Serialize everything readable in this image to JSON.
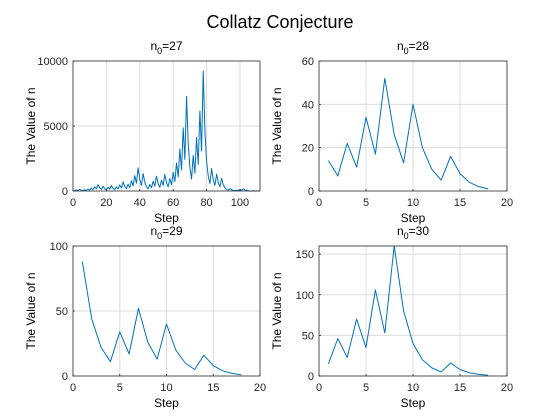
{
  "figure": {
    "title": "Collatz Conjecture",
    "background": "#ffffff",
    "line_color": "#0072bd",
    "grid_color": "#dcdcdc",
    "axis_color": "#262626"
  },
  "chart_data": [
    {
      "type": "line",
      "title_base": "n",
      "title_sub": "0",
      "title_tail": "=27",
      "xlabel": "Step",
      "ylabel": "The Value of n",
      "xlim": [
        0,
        112
      ],
      "ylim": [
        0,
        10000
      ],
      "xticks": [
        0,
        20,
        40,
        60,
        80,
        100
      ],
      "yticks": [
        0,
        5000,
        10000
      ],
      "grid": true,
      "x_start": 1,
      "series": [
        {
          "values": [
            27,
            82,
            41,
            124,
            62,
            31,
            94,
            47,
            142,
            71,
            214,
            107,
            322,
            161,
            484,
            242,
            121,
            364,
            182,
            91,
            274,
            137,
            412,
            206,
            103,
            310,
            155,
            466,
            233,
            700,
            350,
            175,
            526,
            263,
            790,
            395,
            1186,
            593,
            1780,
            890,
            445,
            1336,
            668,
            334,
            167,
            502,
            251,
            754,
            377,
            1132,
            566,
            283,
            850,
            425,
            1276,
            638,
            319,
            958,
            479,
            1438,
            719,
            2158,
            1079,
            3238,
            1619,
            4858,
            2429,
            7288,
            3644,
            1822,
            911,
            2734,
            1367,
            4102,
            2051,
            6154,
            3077,
            9232,
            4616,
            2308,
            1154,
            577,
            1732,
            866,
            433,
            1300,
            650,
            325,
            976,
            488,
            244,
            122,
            61,
            184,
            92,
            46,
            23,
            70,
            35,
            106,
            53,
            160,
            80,
            40,
            20,
            10,
            5,
            16,
            8,
            4,
            2,
            1
          ]
        }
      ]
    },
    {
      "type": "line",
      "title_base": "n",
      "title_sub": "0",
      "title_tail": "=28",
      "xlabel": "Step",
      "ylabel": "The Value of n",
      "xlim": [
        0,
        20
      ],
      "ylim": [
        0,
        60
      ],
      "xticks": [
        0,
        5,
        10,
        15,
        20
      ],
      "yticks": [
        0,
        20,
        40,
        60
      ],
      "grid": true,
      "x_start": 1,
      "series": [
        {
          "values": [
            14,
            7,
            22,
            11,
            34,
            17,
            52,
            26,
            13,
            40,
            20,
            10,
            5,
            16,
            8,
            4,
            2,
            1
          ]
        }
      ]
    },
    {
      "type": "line",
      "title_base": "n",
      "title_sub": "0",
      "title_tail": "=29",
      "xlabel": "Step",
      "ylabel": "The Value of n",
      "xlim": [
        0,
        20
      ],
      "ylim": [
        0,
        100
      ],
      "xticks": [
        0,
        5,
        10,
        15,
        20
      ],
      "yticks": [
        0,
        50,
        100
      ],
      "grid": true,
      "x_start": 1,
      "series": [
        {
          "values": [
            88,
            44,
            22,
            11,
            34,
            17,
            52,
            26,
            13,
            40,
            20,
            10,
            5,
            16,
            8,
            4,
            2,
            1
          ]
        }
      ]
    },
    {
      "type": "line",
      "title_base": "n",
      "title_sub": "0",
      "title_tail": "=30",
      "xlabel": "Step",
      "ylabel": "The Value of n",
      "xlim": [
        0,
        20
      ],
      "ylim": [
        0,
        160
      ],
      "xticks": [
        0,
        5,
        10,
        15,
        20
      ],
      "yticks": [
        0,
        50,
        100,
        150
      ],
      "grid": true,
      "x_start": 1,
      "series": [
        {
          "values": [
            15,
            46,
            23,
            70,
            35,
            106,
            53,
            160,
            80,
            40,
            20,
            10,
            5,
            16,
            8,
            4,
            2,
            1
          ]
        }
      ]
    }
  ]
}
